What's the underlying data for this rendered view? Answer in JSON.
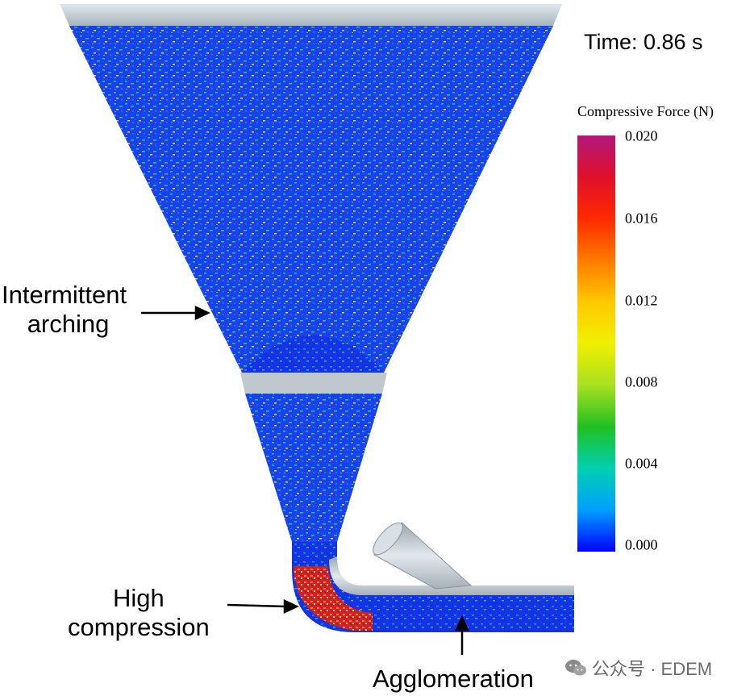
{
  "time_label": "Time: 0.86 s",
  "legend": {
    "title": "Compressive Force (N)",
    "ticks": [
      "0.020",
      "0.016",
      "0.012",
      "0.008",
      "0.004",
      "0.000"
    ]
  },
  "annotations": {
    "arching_line1": "Intermittent",
    "arching_line2": "arching",
    "compression_line1": "High",
    "compression_line2": "compression",
    "agglomeration": "Agglomeration"
  },
  "watermark": "公众号 · EDEM",
  "colors": {
    "particle_blue": "#1a3cf0",
    "hopper_gray": "#b8c4cc",
    "high_force": "#e0102a"
  },
  "icons": [
    "wechat-icon"
  ]
}
